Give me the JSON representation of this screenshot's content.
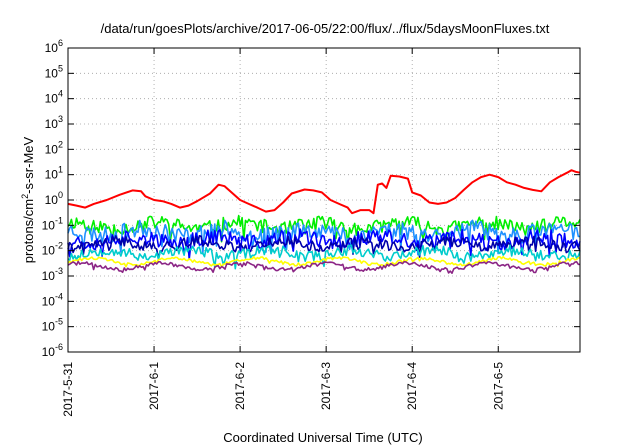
{
  "chart_data": {
    "type": "line",
    "title": "/data/run/goesPlots/archive/2017-06-05/22:00/flux/../flux/5daysMoonFluxes.txt",
    "xlabel": "Coordinated Universal Time (UTC)",
    "ylabel_main": "protons/cm",
    "ylabel_sup": "2",
    "ylabel_tail": "-s-sr-MeV",
    "x_tick_labels": [
      "2017-5-31",
      "2017-6-1",
      "2017-6-2",
      "2017-6-3",
      "2017-6-4",
      "2017-6-5"
    ],
    "x_range_days": [
      0,
      5.95
    ],
    "y_scale": "log",
    "y_range_exp": [
      -6,
      6
    ],
    "y_tick_exponents": [
      "-6",
      "-5",
      "-4",
      "-3",
      "-2",
      "-1",
      "0",
      "1",
      "2",
      "3",
      "4",
      "5",
      "6"
    ],
    "y_tick_base": "10",
    "grid": true,
    "series": [
      {
        "color": "#ff0000",
        "points": [
          [
            0,
            0.7
          ],
          [
            0.1,
            0.6
          ],
          [
            0.2,
            0.5
          ],
          [
            0.3,
            0.7
          ],
          [
            0.45,
            1.0
          ],
          [
            0.6,
            1.6
          ],
          [
            0.75,
            2.4
          ],
          [
            0.85,
            2.2
          ],
          [
            0.9,
            1.4
          ],
          [
            1.0,
            1.0
          ],
          [
            1.1,
            0.9
          ],
          [
            1.2,
            0.7
          ],
          [
            1.3,
            0.5
          ],
          [
            1.4,
            0.6
          ],
          [
            1.5,
            0.9
          ],
          [
            1.65,
            1.8
          ],
          [
            1.75,
            4.0
          ],
          [
            1.82,
            3.5
          ],
          [
            1.9,
            2.0
          ],
          [
            2.0,
            1.0
          ],
          [
            2.1,
            0.7
          ],
          [
            2.2,
            0.5
          ],
          [
            2.3,
            0.35
          ],
          [
            2.4,
            0.4
          ],
          [
            2.5,
            0.8
          ],
          [
            2.6,
            1.8
          ],
          [
            2.75,
            2.6
          ],
          [
            2.85,
            2.4
          ],
          [
            2.95,
            2.0
          ],
          [
            3.05,
            1.0
          ],
          [
            3.15,
            0.7
          ],
          [
            3.25,
            0.5
          ],
          [
            3.3,
            0.3
          ],
          [
            3.4,
            0.4
          ],
          [
            3.5,
            0.4
          ],
          [
            3.55,
            0.3
          ],
          [
            3.6,
            4.0
          ],
          [
            3.65,
            4.5
          ],
          [
            3.7,
            3.0
          ],
          [
            3.75,
            9.0
          ],
          [
            3.85,
            8.5
          ],
          [
            3.95,
            7.0
          ],
          [
            4.0,
            2.0
          ],
          [
            4.1,
            1.5
          ],
          [
            4.2,
            0.8
          ],
          [
            4.3,
            0.7
          ],
          [
            4.4,
            0.8
          ],
          [
            4.5,
            1.2
          ],
          [
            4.6,
            2.5
          ],
          [
            4.7,
            5.0
          ],
          [
            4.8,
            8.0
          ],
          [
            4.9,
            10.0
          ],
          [
            5.0,
            8.0
          ],
          [
            5.1,
            5.0
          ],
          [
            5.2,
            4.0
          ],
          [
            5.3,
            3.0
          ],
          [
            5.4,
            2.5
          ],
          [
            5.5,
            2.2
          ],
          [
            5.6,
            5.0
          ],
          [
            5.7,
            8.0
          ],
          [
            5.8,
            12.0
          ],
          [
            5.85,
            15.0
          ],
          [
            5.9,
            13.0
          ],
          [
            5.95,
            12.0
          ]
        ]
      },
      {
        "color": "#00ee00",
        "points": [],
        "base": 0.1,
        "amp": 0.45,
        "seed": 11
      },
      {
        "color": "#1e90ff",
        "points": [],
        "base": 0.055,
        "amp": 0.55,
        "seed": 23
      },
      {
        "color": "#0000ff",
        "points": [],
        "base": 0.028,
        "amp": 0.5,
        "seed": 37
      },
      {
        "color": "#0000aa",
        "points": [],
        "base": 0.018,
        "amp": 0.35,
        "seed": 41
      },
      {
        "color": "#00cccc",
        "points": [],
        "base": 0.008,
        "amp": 0.35,
        "seed": 53
      },
      {
        "color": "#ffff00",
        "points": [],
        "base": 0.0038,
        "amp": 0.1,
        "seed": 61
      },
      {
        "color": "#8b2585",
        "points": [],
        "base": 0.0024,
        "amp": 0.12,
        "seed": 71
      }
    ]
  }
}
